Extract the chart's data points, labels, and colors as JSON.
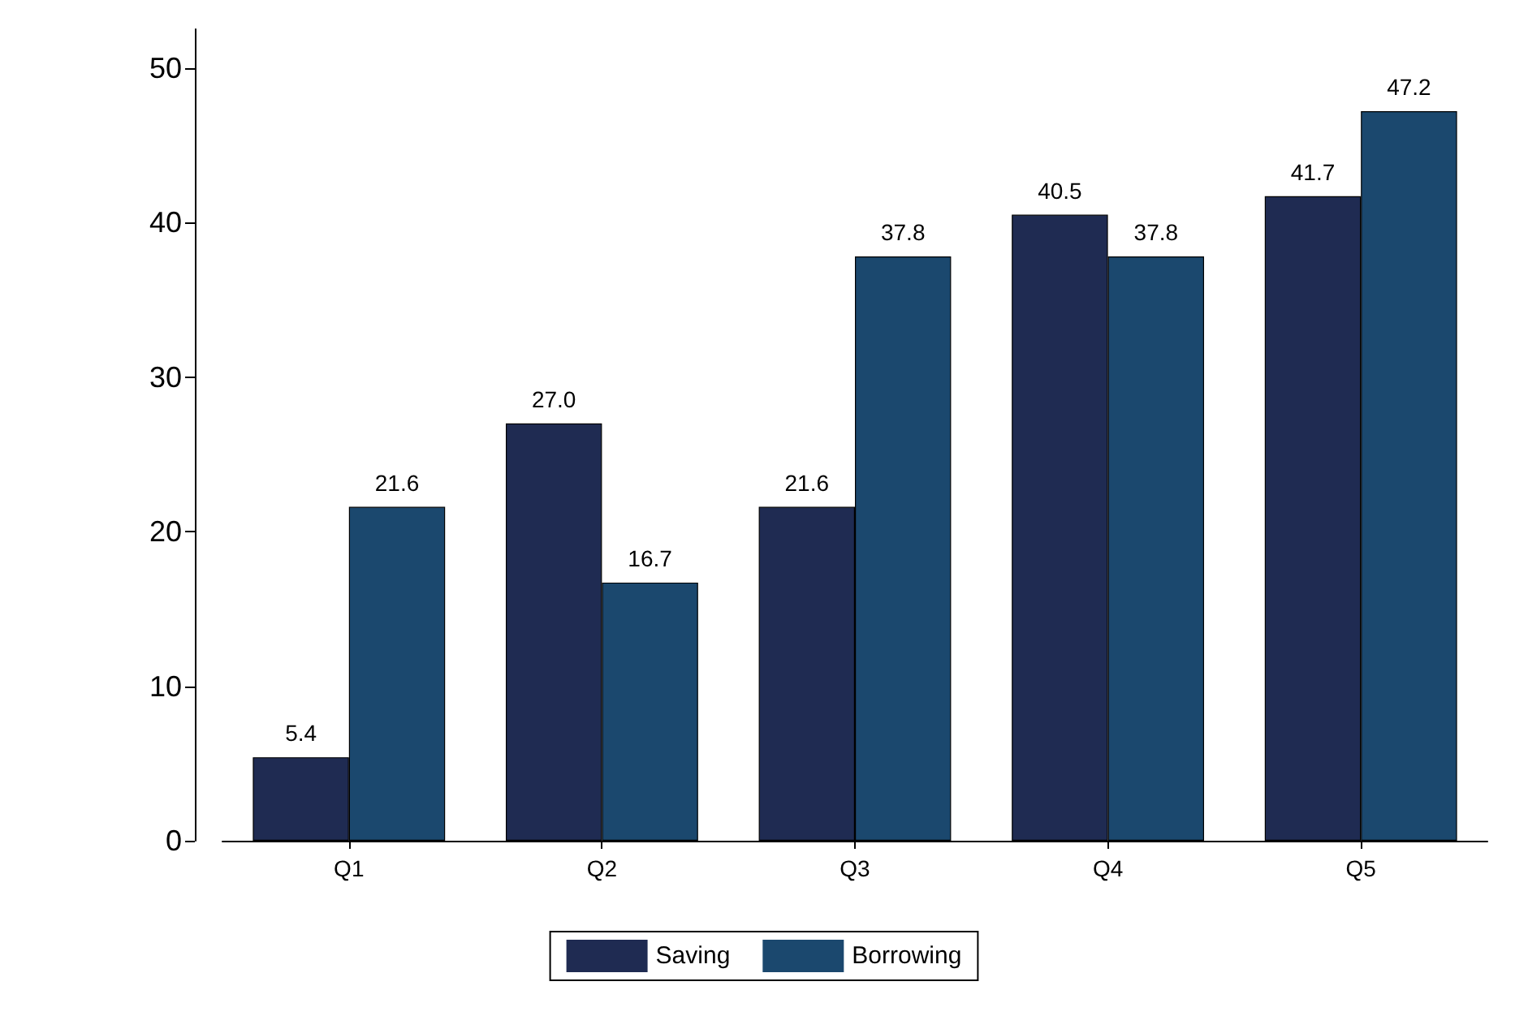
{
  "chart_data": {
    "type": "bar",
    "categories": [
      "Q1",
      "Q2",
      "Q3",
      "Q4",
      "Q5"
    ],
    "series": [
      {
        "name": "Saving",
        "color": "#1f2b52",
        "values": [
          5.4,
          27.0,
          21.6,
          40.5,
          41.7
        ],
        "value_labels": [
          "5.4",
          "27.0",
          "21.6",
          "40.5",
          "41.7"
        ]
      },
      {
        "name": "Borrowing",
        "color": "#1b486e",
        "values": [
          21.6,
          16.7,
          37.8,
          37.8,
          47.2
        ],
        "value_labels": [
          "21.6",
          "16.7",
          "37.8",
          "37.8",
          "47.2"
        ]
      }
    ],
    "ylim": [
      0,
      52.5
    ],
    "yticks": [
      0,
      10,
      20,
      30,
      40,
      50
    ],
    "grid": false,
    "legend": "bottom"
  }
}
